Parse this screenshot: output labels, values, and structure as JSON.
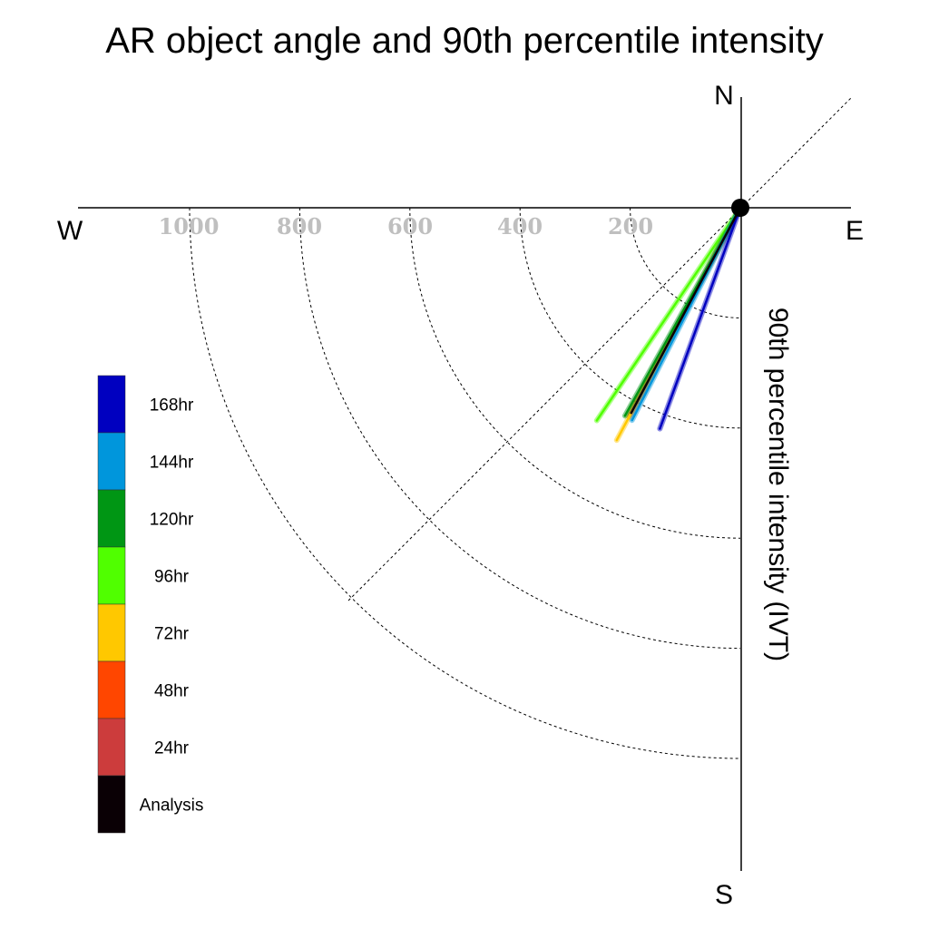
{
  "chart_data": {
    "type": "line",
    "title": "AR object angle and 90th percentile intensity",
    "ylabel": "90th percentile intensity (IVT)",
    "compass": {
      "north": "N",
      "south": "S",
      "east": "E",
      "west": "W"
    },
    "radial_ticks": [
      "200",
      "400",
      "600",
      "800",
      "1000"
    ],
    "radial_range": [
      0,
      1000
    ],
    "grid": true,
    "legend_placement": "left",
    "series": [
      {
        "name": "168hr",
        "color": "#0000c0",
        "angle_deg": 200,
        "intensity": 427
      },
      {
        "name": "144hr",
        "color": "#0096dc",
        "angle_deg": 207,
        "intensity": 433
      },
      {
        "name": "120hr",
        "color": "#009614",
        "angle_deg": 209,
        "intensity": 432
      },
      {
        "name": "96hr",
        "color": "#50ff00",
        "angle_deg": 214,
        "intensity": 466
      },
      {
        "name": "72hr",
        "color": "#ffc800",
        "angle_deg": 208,
        "intensity": 478
      },
      {
        "name": "48hr",
        "color": "#ff4600",
        "angle_deg": 208,
        "intensity": 430
      },
      {
        "name": "24hr",
        "color": "#cc3c3c",
        "angle_deg": 208,
        "intensity": 425
      },
      {
        "name": "Analysis",
        "color": "#0a0005",
        "angle_deg": 208,
        "intensity": 422
      }
    ]
  }
}
